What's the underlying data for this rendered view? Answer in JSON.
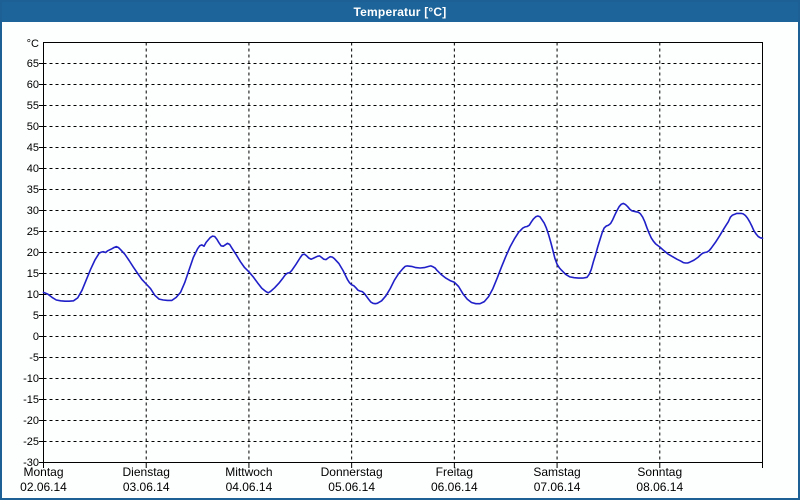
{
  "window": {
    "title": "Temperatur [°C]"
  },
  "colors": {
    "titlebar": "#1c6499",
    "window_border": "#1c6095",
    "background": "#fdfefe",
    "grid": "#000000",
    "frame": "#000000",
    "line": "#2020c8",
    "title_text": "#ffffff",
    "axis_text": "#000000"
  },
  "chart_data": {
    "type": "line",
    "title": "Temperatur [°C]",
    "ylabel": "°C",
    "xlabel": "",
    "ylim": [
      -30,
      70
    ],
    "xlim_hours": [
      0,
      168
    ],
    "grid": "dashed",
    "legend": "none",
    "y_ticks": [
      65,
      60,
      55,
      50,
      45,
      40,
      35,
      30,
      25,
      20,
      15,
      10,
      5,
      0,
      -5,
      -10,
      -15,
      -20,
      -25,
      -30
    ],
    "days": [
      {
        "name": "Montag",
        "date": "02.06.14"
      },
      {
        "name": "Dienstag",
        "date": "03.06.14"
      },
      {
        "name": "Mittwoch",
        "date": "04.06.14"
      },
      {
        "name": "Donnerstag",
        "date": "05.06.14"
      },
      {
        "name": "Freitag",
        "date": "06.06.14"
      },
      {
        "name": "Samstag",
        "date": "07.06.14"
      },
      {
        "name": "Sonntag",
        "date": "08.06.14"
      }
    ],
    "series": [
      {
        "name": "Temperatur",
        "unit": "°C",
        "color": "#2020c8",
        "points_hours_vs_celsius": [
          [
            0,
            10.5
          ],
          [
            1,
            10.1
          ],
          [
            2,
            9.3
          ],
          [
            3,
            8.7
          ],
          [
            4,
            8.5
          ],
          [
            5,
            8.4
          ],
          [
            6,
            8.4
          ],
          [
            7,
            8.5
          ],
          [
            8,
            9.2
          ],
          [
            9,
            11.0
          ],
          [
            10,
            13.5
          ],
          [
            11,
            16.0
          ],
          [
            12,
            18.2
          ],
          [
            13,
            19.8
          ],
          [
            13.5,
            20.1
          ],
          [
            14,
            20.2
          ],
          [
            14.5,
            20.0
          ],
          [
            15,
            20.4
          ],
          [
            16,
            20.9
          ],
          [
            16.5,
            21.2
          ],
          [
            17,
            21.4
          ],
          [
            17.5,
            21.2
          ],
          [
            18,
            20.7
          ],
          [
            19,
            19.6
          ],
          [
            20,
            18.1
          ],
          [
            21,
            16.5
          ],
          [
            22,
            15.0
          ],
          [
            23,
            13.6
          ],
          [
            24,
            12.5
          ],
          [
            25,
            11.4
          ],
          [
            26,
            9.8
          ],
          [
            27,
            8.9
          ],
          [
            28,
            8.7
          ],
          [
            29,
            8.6
          ],
          [
            30,
            8.6
          ],
          [
            31,
            9.3
          ],
          [
            32,
            10.5
          ],
          [
            33,
            12.8
          ],
          [
            34,
            15.8
          ],
          [
            35,
            18.8
          ],
          [
            36,
            20.9
          ],
          [
            36.5,
            21.6
          ],
          [
            37,
            21.8
          ],
          [
            37.5,
            21.5
          ],
          [
            38,
            22.4
          ],
          [
            39,
            23.6
          ],
          [
            39.5,
            23.9
          ],
          [
            40,
            23.8
          ],
          [
            40.5,
            23.2
          ],
          [
            41,
            22.3
          ],
          [
            41.5,
            21.6
          ],
          [
            42,
            21.5
          ],
          [
            43,
            22.2
          ],
          [
            43.5,
            21.9
          ],
          [
            44,
            21.1
          ],
          [
            45,
            19.5
          ],
          [
            46,
            17.8
          ],
          [
            47,
            16.4
          ],
          [
            48,
            15.4
          ],
          [
            49,
            14.2
          ],
          [
            50,
            12.8
          ],
          [
            51,
            11.5
          ],
          [
            52,
            10.7
          ],
          [
            52.5,
            10.4
          ],
          [
            53,
            10.7
          ],
          [
            54,
            11.6
          ],
          [
            55,
            12.7
          ],
          [
            56,
            14.0
          ],
          [
            56.5,
            14.7
          ],
          [
            57,
            15.1
          ],
          [
            57.5,
            15.2
          ],
          [
            58,
            15.7
          ],
          [
            59,
            17.2
          ],
          [
            60,
            18.8
          ],
          [
            60.5,
            19.5
          ],
          [
            61,
            19.6
          ],
          [
            61.5,
            19.2
          ],
          [
            62,
            18.7
          ],
          [
            62.5,
            18.4
          ],
          [
            63,
            18.6
          ],
          [
            64,
            19.1
          ],
          [
            64.5,
            19.2
          ],
          [
            65,
            18.8
          ],
          [
            65.5,
            18.4
          ],
          [
            66,
            18.3
          ],
          [
            66.5,
            18.7
          ],
          [
            67,
            19.0
          ],
          [
            67.5,
            18.9
          ],
          [
            68,
            18.5
          ],
          [
            69,
            17.4
          ],
          [
            70,
            15.7
          ],
          [
            71,
            13.6
          ],
          [
            71.5,
            12.8
          ],
          [
            72,
            12.3
          ],
          [
            72.5,
            12.1
          ],
          [
            73,
            11.6
          ],
          [
            73.5,
            11.0
          ],
          [
            74,
            10.8
          ],
          [
            74.5,
            10.7
          ],
          [
            75,
            10.2
          ],
          [
            76,
            8.8
          ],
          [
            76.5,
            8.2
          ],
          [
            77,
            7.9
          ],
          [
            77.5,
            7.8
          ],
          [
            78,
            7.9
          ],
          [
            79,
            8.5
          ],
          [
            80,
            9.7
          ],
          [
            81,
            11.4
          ],
          [
            82,
            13.4
          ],
          [
            83,
            15.0
          ],
          [
            84,
            16.2
          ],
          [
            84.5,
            16.7
          ],
          [
            85,
            16.8
          ],
          [
            86,
            16.7
          ],
          [
            87,
            16.4
          ],
          [
            88,
            16.3
          ],
          [
            89,
            16.4
          ],
          [
            90,
            16.7
          ],
          [
            90.5,
            16.8
          ],
          [
            91,
            16.6
          ],
          [
            91.5,
            16.3
          ],
          [
            92,
            15.7
          ],
          [
            93,
            14.7
          ],
          [
            94,
            13.9
          ],
          [
            95,
            13.3
          ],
          [
            96,
            12.9
          ],
          [
            97,
            11.9
          ],
          [
            98,
            10.2
          ],
          [
            99,
            8.9
          ],
          [
            100,
            8.1
          ],
          [
            101,
            7.8
          ],
          [
            102,
            7.8
          ],
          [
            103,
            8.3
          ],
          [
            104,
            9.5
          ],
          [
            105,
            11.4
          ],
          [
            106,
            13.9
          ],
          [
            107,
            16.5
          ],
          [
            108,
            19.0
          ],
          [
            109,
            21.3
          ],
          [
            110,
            23.2
          ],
          [
            111,
            24.8
          ],
          [
            112,
            25.8
          ],
          [
            112.5,
            26.1
          ],
          [
            113,
            26.2
          ],
          [
            113.5,
            26.5
          ],
          [
            114,
            27.3
          ],
          [
            114.5,
            28.0
          ],
          [
            115,
            28.5
          ],
          [
            115.5,
            28.7
          ],
          [
            116,
            28.5
          ],
          [
            117,
            27.0
          ],
          [
            117.5,
            25.8
          ],
          [
            118,
            24.3
          ],
          [
            118.5,
            22.5
          ],
          [
            119,
            20.6
          ],
          [
            119.5,
            18.6
          ],
          [
            120,
            17.2
          ],
          [
            120.5,
            16.4
          ],
          [
            121,
            15.8
          ],
          [
            122,
            14.8
          ],
          [
            123,
            14.2
          ],
          [
            124,
            14.0
          ],
          [
            125,
            13.9
          ],
          [
            126,
            13.9
          ],
          [
            127,
            14.1
          ],
          [
            127.5,
            14.8
          ],
          [
            128,
            16.0
          ],
          [
            128.5,
            17.8
          ],
          [
            129,
            19.5
          ],
          [
            129.5,
            21.3
          ],
          [
            130,
            23.0
          ],
          [
            130.5,
            24.6
          ],
          [
            131,
            25.8
          ],
          [
            131.5,
            26.3
          ],
          [
            132,
            26.5
          ],
          [
            132.5,
            26.9
          ],
          [
            133,
            27.8
          ],
          [
            133.5,
            28.9
          ],
          [
            134,
            30.0
          ],
          [
            134.5,
            30.9
          ],
          [
            135,
            31.5
          ],
          [
            135.5,
            31.7
          ],
          [
            136,
            31.4
          ],
          [
            136.5,
            30.9
          ],
          [
            137,
            30.3
          ],
          [
            137.5,
            29.9
          ],
          [
            138,
            29.8
          ],
          [
            138.5,
            29.7
          ],
          [
            139,
            29.6
          ],
          [
            139.5,
            29.2
          ],
          [
            140,
            28.4
          ],
          [
            140.5,
            27.3
          ],
          [
            141,
            25.9
          ],
          [
            141.5,
            24.6
          ],
          [
            142,
            23.5
          ],
          [
            142.5,
            22.7
          ],
          [
            143,
            22.1
          ],
          [
            143.5,
            21.7
          ],
          [
            144,
            21.3
          ],
          [
            145,
            20.4
          ],
          [
            146,
            19.6
          ],
          [
            147,
            19.0
          ],
          [
            148,
            18.4
          ],
          [
            149,
            17.9
          ],
          [
            149.5,
            17.6
          ],
          [
            150,
            17.5
          ],
          [
            150.5,
            17.5
          ],
          [
            151,
            17.7
          ],
          [
            152,
            18.2
          ],
          [
            153,
            18.9
          ],
          [
            153.5,
            19.4
          ],
          [
            154,
            19.8
          ],
          [
            154.5,
            20.0
          ],
          [
            155,
            20.1
          ],
          [
            155.5,
            20.4
          ],
          [
            156,
            21.0
          ],
          [
            157,
            22.4
          ],
          [
            158,
            24.0
          ],
          [
            159,
            25.7
          ],
          [
            159.5,
            26.5
          ],
          [
            160,
            27.3
          ],
          [
            160.5,
            28.4
          ],
          [
            161,
            28.9
          ],
          [
            161.5,
            29.1
          ],
          [
            162,
            29.3
          ],
          [
            163,
            29.3
          ],
          [
            163.5,
            29.2
          ],
          [
            164,
            28.8
          ],
          [
            164.5,
            28.2
          ],
          [
            165,
            27.3
          ],
          [
            165.5,
            26.3
          ],
          [
            166,
            25.2
          ],
          [
            166.5,
            24.4
          ],
          [
            167,
            23.8
          ],
          [
            167.5,
            23.5
          ],
          [
            168,
            23.4
          ]
        ]
      }
    ]
  }
}
